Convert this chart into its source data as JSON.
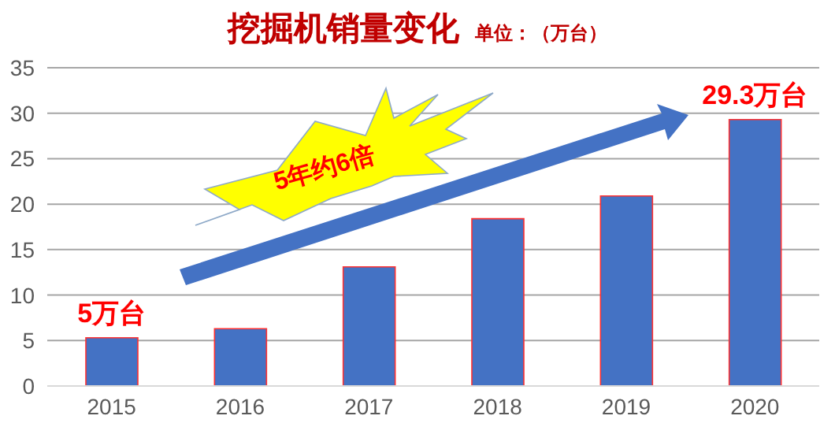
{
  "chart_data": {
    "type": "bar",
    "title": "挖掘机销量变化",
    "subtitle": "单位：（万台）",
    "categories": [
      "2015",
      "2016",
      "2017",
      "2018",
      "2019",
      "2020"
    ],
    "values": [
      5.3,
      6.3,
      13.1,
      18.4,
      20.9,
      29.3
    ],
    "color": "#4472c4",
    "ylim": [
      0,
      35
    ],
    "yticks": [
      0,
      5,
      10,
      15,
      20,
      25,
      30,
      35
    ],
    "grid": "y",
    "legend": false,
    "annotations": [
      {
        "text": "5万台",
        "x": "2015",
        "y": 5.3
      },
      {
        "text": "29.3万台",
        "x": "2020",
        "y": 29.3
      },
      "5年约6倍"
    ]
  }
}
